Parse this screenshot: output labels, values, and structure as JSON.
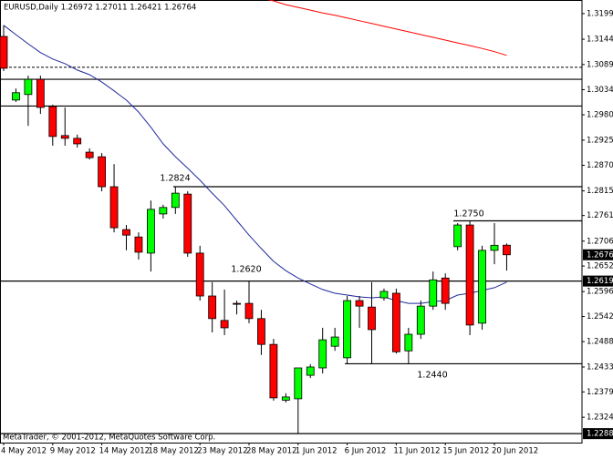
{
  "chart_data": {
    "type": "candlestick",
    "title": "EURUSD,Daily  1.26972 1.27011 1.26421 1.26764",
    "footer": "MetaTrader, © 2001-2012, MetaQuotes Software Corp.",
    "categories": [
      "4 May 2012",
      null,
      null,
      null,
      "9 May 2012",
      null,
      null,
      null,
      "14 May 2012",
      null,
      null,
      null,
      "18 May 2012",
      null,
      null,
      null,
      "23 May 2012",
      null,
      null,
      null,
      "28 May 2012",
      null,
      null,
      null,
      "1 Jun 2012",
      null,
      null,
      null,
      "6 Jun 2012",
      null,
      null,
      null,
      "11 Jun 2012",
      null,
      null,
      null,
      "15 Jun 2012",
      null,
      null,
      null,
      "20 Jun 2012",
      null
    ],
    "open": [
      1.315,
      1.3012,
      1.3024,
      1.3057,
      1.2998,
      1.2935,
      1.2929,
      1.2899,
      1.2889,
      1.2824,
      1.2731,
      1.2715,
      1.268,
      1.2765,
      1.2779,
      1.2808,
      1.268,
      1.2587,
      1.2534,
      1.2571,
      1.2571,
      1.2538,
      1.2482,
      1.2361,
      1.2364,
      1.2415,
      1.2431,
      1.2478,
      1.2453,
      1.2577,
      1.2563,
      1.2583,
      1.2593,
      1.2468,
      1.2504,
      1.2565,
      1.2626,
      1.2694,
      1.2741,
      1.2528,
      1.2686,
      1.26972
    ],
    "high": [
      1.3174,
      1.3037,
      1.3065,
      1.3065,
      1.3002,
      1.2996,
      1.2937,
      1.2907,
      1.2897,
      1.2873,
      1.2741,
      1.2725,
      1.2794,
      1.2785,
      1.2824,
      1.2814,
      1.2696,
      1.2617,
      1.2601,
      1.2577,
      1.262,
      1.2557,
      1.2494,
      1.2376,
      1.2429,
      1.2439,
      1.2518,
      1.2518,
      1.2587,
      1.2587,
      1.2617,
      1.2603,
      1.2603,
      1.2518,
      1.2577,
      1.264,
      1.2636,
      1.2745,
      1.275,
      1.2696,
      1.2745,
      1.27011
    ],
    "low": [
      1.3075,
      1.3008,
      1.2956,
      1.2982,
      1.2913,
      1.2913,
      1.2909,
      1.2883,
      1.2814,
      1.2725,
      1.2686,
      1.2666,
      1.264,
      1.2755,
      1.2765,
      1.2672,
      1.2577,
      1.2508,
      1.2502,
      1.2547,
      1.2528,
      1.2459,
      1.236,
      1.2356,
      1.22885,
      1.2409,
      1.2419,
      1.2468,
      1.244,
      1.2518,
      1.2439,
      1.2577,
      1.2462,
      1.2439,
      1.2494,
      1.2557,
      1.2557,
      1.2686,
      1.2502,
      1.2514,
      1.2656,
      1.26421
    ],
    "close": [
      1.3081,
      1.3028,
      1.3057,
      1.2996,
      1.2933,
      1.2929,
      1.2917,
      1.2887,
      1.2824,
      1.2735,
      1.2719,
      1.2682,
      1.2775,
      1.2779,
      1.281,
      1.268,
      1.2587,
      1.2538,
      1.2518,
      1.2569,
      1.2538,
      1.2482,
      1.2366,
      1.2368,
      1.2431,
      1.2433,
      1.2492,
      1.2498,
      1.2577,
      1.2565,
      1.2514,
      1.2597,
      1.2466,
      1.2504,
      1.2565,
      1.2622,
      1.2571,
      1.2741,
      1.2524,
      1.2686,
      1.2697,
      1.26764
    ],
    "up_color": "#00ff00",
    "down_color": "#ff0000",
    "moving_averages": [
      {
        "color": "#1f2a9c",
        "values": [
          1.3174,
          1.3154,
          1.3134,
          1.3115,
          1.3101,
          1.3091,
          1.3077,
          1.3067,
          1.3051,
          1.3032,
          1.3012,
          1.2986,
          1.2953,
          1.2917,
          1.2889,
          1.2864,
          1.2838,
          1.281,
          1.2783,
          1.2751,
          1.2719,
          1.269,
          1.2662,
          1.2642,
          1.2626,
          1.2613,
          1.2601,
          1.2593,
          1.2589,
          1.2585,
          1.2583,
          1.2585,
          1.2577,
          1.2571,
          1.2571,
          1.2575,
          1.2577,
          1.2589,
          1.2593,
          1.2599,
          1.2605,
          1.2617
        ]
      },
      {
        "color": "#ff0000",
        "values": [
          null,
          null,
          null,
          null,
          null,
          null,
          null,
          null,
          null,
          null,
          null,
          null,
          null,
          null,
          null,
          null,
          null,
          null,
          null,
          null,
          null,
          1.3233,
          1.3227,
          1.3219,
          1.3213,
          1.3207,
          1.3201,
          1.3196,
          1.319,
          1.3184,
          1.3178,
          1.3172,
          1.3166,
          1.316,
          1.3154,
          1.3148,
          1.3142,
          1.3136,
          1.313,
          1.3124,
          1.3117,
          1.3109
        ]
      }
    ],
    "levels": [
      {
        "value": 1.3083,
        "style": "dashed"
      },
      {
        "value": 1.3057,
        "style": "solid"
      },
      {
        "value": 1.2999,
        "style": "solid"
      },
      {
        "value": 1.2824,
        "style": "solid"
      },
      {
        "value": 1.275,
        "style": "solid"
      },
      {
        "value": 1.26194,
        "style": "solid"
      },
      {
        "value": 1.244,
        "style": "solid"
      },
      {
        "value": 1.22885,
        "style": "solid"
      }
    ],
    "annotations": [
      "1.2824",
      "1.2620",
      "1.2750",
      "1.2440"
    ],
    "marked_prices": [
      1.26764,
      1.26194,
      1.22885
    ],
    "ylim": [
      1.2269,
      1.3229
    ],
    "yticks": [
      1.31995,
      {
        "value": 1.3144,
        "label": "1.31440"
      },
      {
        "value": 1.3089,
        "label": "1.30890"
      },
      1.30345,
      {
        "value": 1.298,
        "label": "1.29800"
      },
      {
        "value": 1.2925,
        "label": "1.29250"
      },
      1.28705,
      {
        "value": 1.2815,
        "label": "1.28150"
      },
      1.27615,
      {
        "value": 1.2706,
        "label": "1.27060"
      },
      {
        "value": 1.2652,
        "label": "1.26520"
      },
      1.25965,
      1.25425,
      {
        "value": 1.2488,
        "label": "1.24880"
      },
      {
        "value": 1.2433,
        "label": "1.24330"
      },
      {
        "value": 1.2379,
        "label": "1.23790"
      },
      {
        "value": 1.2324,
        "label": "1.23240"
      }
    ]
  }
}
